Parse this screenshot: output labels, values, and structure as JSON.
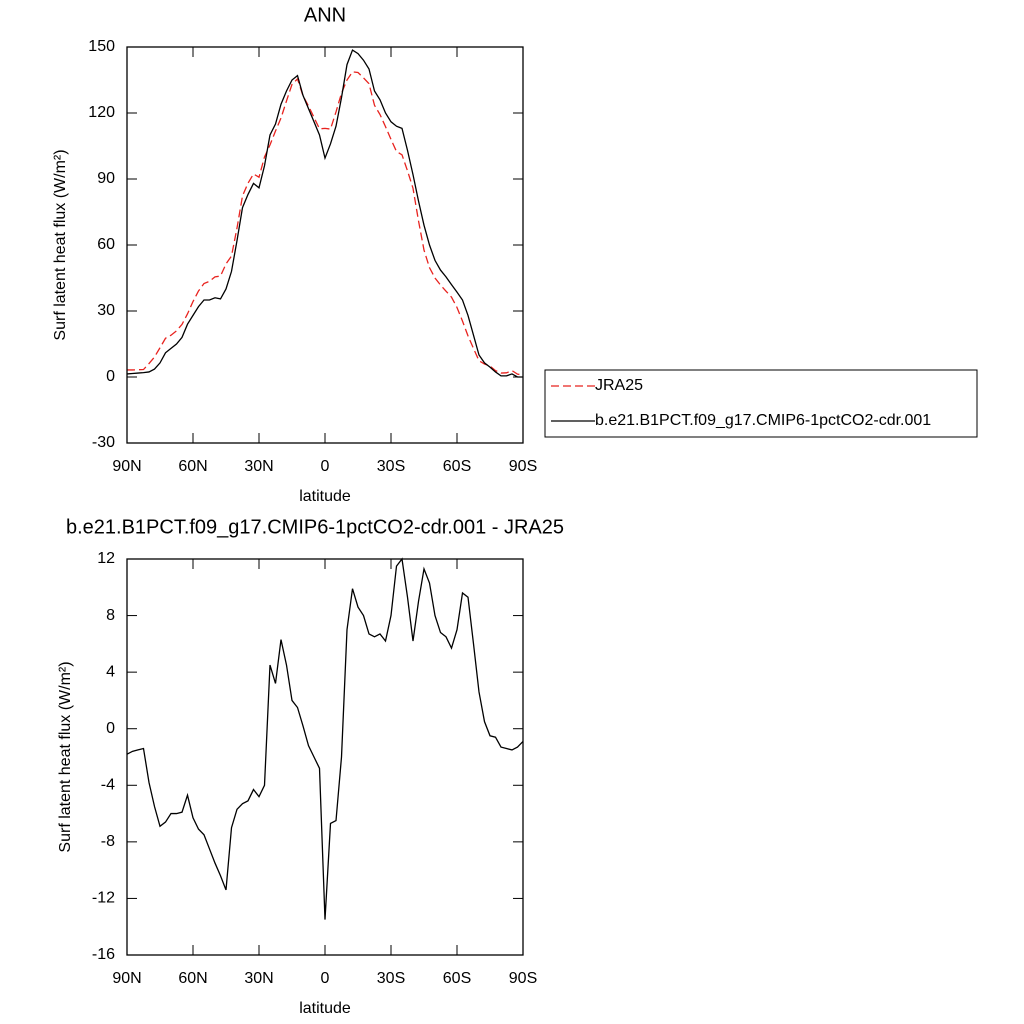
{
  "chart_data": [
    {
      "type": "line",
      "title": "ANN",
      "x_label": "latitude",
      "y_label": "Surf latent heat flux (W/m²)",
      "x": [
        90,
        87.5,
        85,
        82.5,
        80,
        77.5,
        75,
        72.5,
        70,
        67.5,
        65,
        62.5,
        60,
        57.5,
        55,
        52.5,
        50,
        47.5,
        45,
        42.5,
        40,
        37.5,
        35,
        32.5,
        30,
        27.5,
        25,
        22.5,
        20,
        17.5,
        15,
        12.5,
        10,
        7.5,
        5,
        2.5,
        0,
        -2.5,
        -5,
        -7.5,
        -10,
        -12.5,
        -15,
        -17.5,
        -20,
        -22.5,
        -25,
        -27.5,
        -30,
        -32.5,
        -35,
        -37.5,
        -40,
        -42.5,
        -45,
        -47.5,
        -50,
        -52.5,
        -55,
        -57.5,
        -60,
        -62.5,
        -65,
        -67.5,
        -70,
        -72.5,
        -75,
        -77.5,
        -80,
        -82.5,
        -85,
        -87.5,
        -90
      ],
      "xlim": [
        90,
        -90
      ],
      "xticks": [
        {
          "value": 90,
          "label": "90N"
        },
        {
          "value": 60,
          "label": "60N"
        },
        {
          "value": 30,
          "label": "30N"
        },
        0,
        {
          "value": -30,
          "label": "30S"
        },
        {
          "value": -60,
          "label": "60S"
        },
        {
          "value": -90,
          "label": "90S"
        }
      ],
      "ylim": [
        -30,
        150
      ],
      "yticks": [
        -30,
        0,
        30,
        60,
        90,
        120,
        150
      ],
      "legend": "right",
      "series": [
        {
          "name": "JRA25",
          "color": "#e8231f",
          "dash": true,
          "values": [
            3.2,
            3.2,
            3.3,
            3.4,
            6.1,
            9.1,
            13.3,
            17.6,
            19,
            21,
            23.9,
            28.7,
            34.3,
            39.1,
            42.5,
            43.5,
            45.5,
            45.9,
            51.4,
            55,
            67.7,
            82.3,
            88.1,
            92.3,
            90.8,
            100,
            105.5,
            111.8,
            117.7,
            125.5,
            133,
            135.5,
            127.8,
            123.2,
            118,
            112.8,
            113,
            112.7,
            120.5,
            129,
            135,
            138.7,
            138.4,
            136,
            133.3,
            123.5,
            119.3,
            113.8,
            108,
            102.5,
            101,
            93.7,
            85.8,
            71,
            57.7,
            49.7,
            45,
            41.8,
            39,
            36.3,
            31.6,
            25.4,
            18.7,
            13,
            7.4,
            5.9,
            5,
            2.9,
            1.8,
            1.9,
            2.9,
            1.3,
            0.9
          ]
        },
        {
          "name": "b.e21.B1PCT.f09_g17.CMIP6-1pctCO2-cdr.001",
          "color": "#000000",
          "dash": false,
          "values": [
            1.4,
            1.6,
            1.8,
            2,
            2.3,
            3.6,
            6.4,
            11,
            13,
            15,
            18,
            24,
            28,
            32,
            35,
            35,
            36,
            35.5,
            40,
            48,
            62,
            77,
            83,
            88,
            86,
            96,
            110,
            115,
            124,
            130,
            135,
            137,
            128,
            122,
            116,
            110,
            99.5,
            106,
            114,
            127,
            142,
            148.6,
            147,
            144,
            140,
            130,
            126,
            120,
            116,
            114,
            113,
            103,
            92,
            80,
            69,
            60,
            53,
            48.6,
            45.5,
            42,
            38.6,
            35,
            28,
            19,
            10,
            6.4,
            4.5,
            2.3,
            0.5,
            0.5,
            1.4,
            0,
            0
          ]
        }
      ]
    },
    {
      "type": "line",
      "title": "b.e21.B1PCT.f09_g17.CMIP6-1pctCO2-cdr.001 - JRA25",
      "x_label": "latitude",
      "y_label": "Surf latent heat flux (W/m²)",
      "x": [
        90,
        87.5,
        85,
        82.5,
        80,
        77.5,
        75,
        72.5,
        70,
        67.5,
        65,
        62.5,
        60,
        57.5,
        55,
        52.5,
        50,
        47.5,
        45,
        42.5,
        40,
        37.5,
        35,
        32.5,
        30,
        27.5,
        25,
        22.5,
        20,
        17.5,
        15,
        12.5,
        10,
        7.5,
        5,
        2.5,
        0,
        -2.5,
        -5,
        -7.5,
        -10,
        -12.5,
        -15,
        -17.5,
        -20,
        -22.5,
        -25,
        -27.5,
        -30,
        -32.5,
        -35,
        -37.5,
        -40,
        -42.5,
        -45,
        -47.5,
        -50,
        -52.5,
        -55,
        -57.5,
        -60,
        -62.5,
        -65,
        -67.5,
        -70,
        -72.5,
        -75,
        -77.5,
        -80,
        -82.5,
        -85,
        -87.5,
        -90
      ],
      "xlim": [
        90,
        -90
      ],
      "xticks": [
        {
          "value": 90,
          "label": "90N"
        },
        {
          "value": 60,
          "label": "60N"
        },
        {
          "value": 30,
          "label": "30N"
        },
        0,
        {
          "value": -30,
          "label": "30S"
        },
        {
          "value": -60,
          "label": "60S"
        },
        {
          "value": -90,
          "label": "90S"
        }
      ],
      "ylim": [
        -16,
        12
      ],
      "yticks": [
        -16,
        -12,
        -8,
        -4,
        0,
        4,
        8,
        12
      ],
      "color": "#000000",
      "values": [
        -1.8,
        -1.6,
        -1.5,
        -1.4,
        -3.8,
        -5.5,
        -6.9,
        -6.6,
        -6,
        -6,
        -5.9,
        -4.7,
        -6.3,
        -7.1,
        -7.5,
        -8.5,
        -9.5,
        -10.4,
        -11.4,
        -7,
        -5.7,
        -5.3,
        -5.1,
        -4.3,
        -4.8,
        -4,
        4.5,
        3.2,
        6.3,
        4.5,
        2,
        1.5,
        0.2,
        -1.2,
        -2,
        -2.8,
        -13.5,
        -6.7,
        -6.5,
        -2,
        7,
        9.9,
        8.6,
        8,
        6.7,
        6.5,
        6.7,
        6.2,
        8,
        11.5,
        12,
        9.3,
        6.2,
        9,
        11.3,
        10.3,
        8,
        6.8,
        6.5,
        5.7,
        7,
        9.6,
        9.3,
        6,
        2.6,
        0.5,
        -0.5,
        -0.6,
        -1.3,
        -1.4,
        -1.5,
        -1.3,
        -0.9
      ]
    }
  ]
}
